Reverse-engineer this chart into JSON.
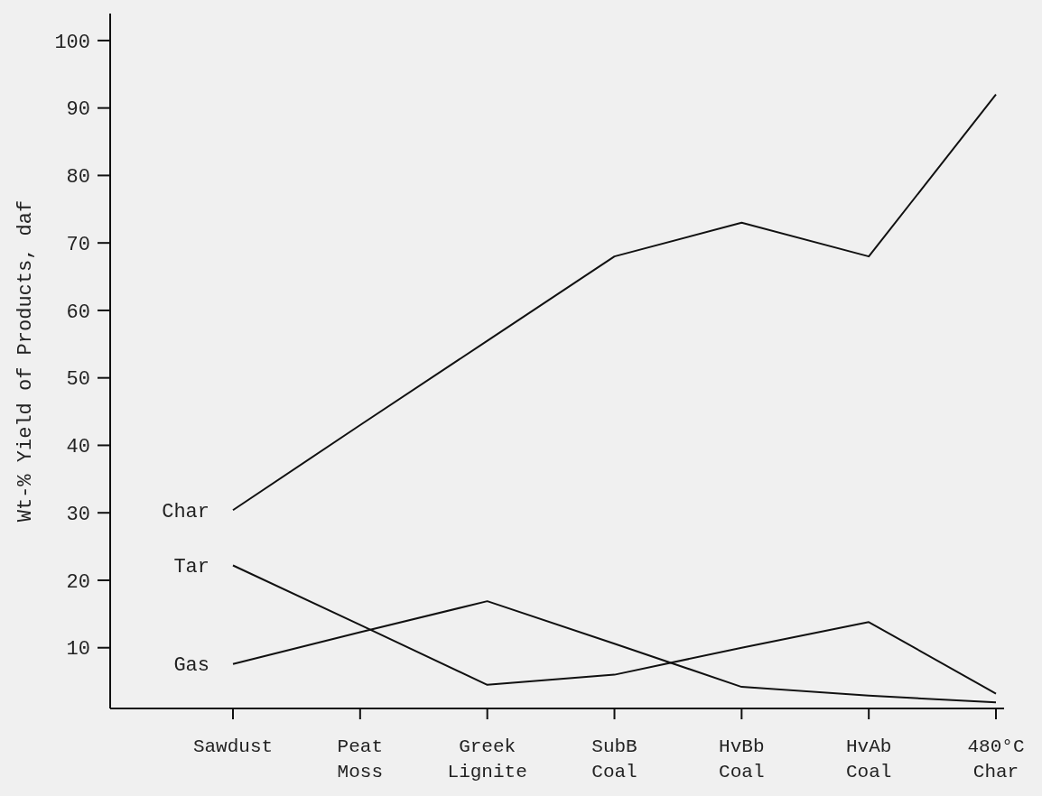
{
  "chart_data": {
    "type": "line",
    "ylabel": "Wt-% Yield of Products, daf",
    "categories": [
      "Sawdust",
      "Peat\nMoss",
      "Greek\nLignite",
      "SubB\nCoal",
      "HvBb\nCoal",
      "HvAb\nCoal",
      "480°C\nChar"
    ],
    "series": [
      {
        "name": "Char",
        "color": "#111111",
        "values": [
          30.4,
          43,
          55.5,
          68,
          73,
          68,
          92
        ]
      },
      {
        "name": "Tar",
        "color": "#111111",
        "values": [
          22.2,
          13.4,
          4.5,
          6,
          10,
          13.8,
          3.2
        ]
      },
      {
        "name": "Gas",
        "color": "#111111",
        "values": [
          7.6,
          12.3,
          16.9,
          10.6,
          4.2,
          2.9,
          1.9
        ]
      }
    ],
    "ylim": [
      1,
      104
    ],
    "yticks": [
      10,
      20,
      30,
      40,
      50,
      60,
      70,
      80,
      90,
      100
    ],
    "grid": false,
    "legend": false,
    "marker": "none",
    "line_style": "solid"
  }
}
